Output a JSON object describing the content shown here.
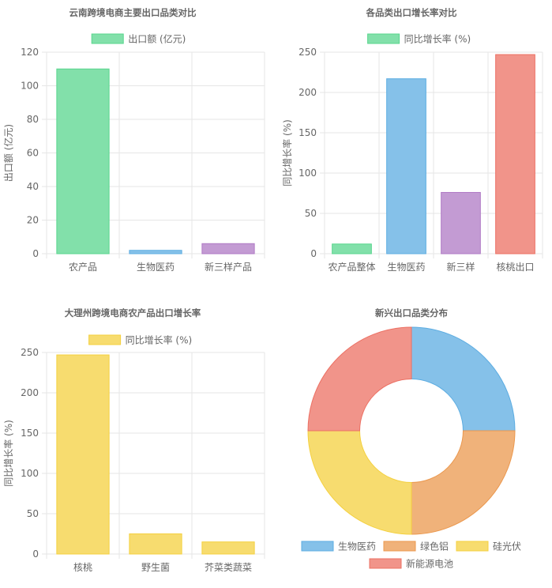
{
  "chart_data": [
    {
      "type": "bar",
      "title": "云南跨境电商主要出口品类对比",
      "legend": [
        {
          "label": "出口额 (亿元)",
          "color": "#82e0aa",
          "border": "#58d68d"
        }
      ],
      "legend_position": "top",
      "categories": [
        "农产品",
        "生物医药",
        "新三样产品"
      ],
      "series": [
        {
          "name": "出口额 (亿元)",
          "values": [
            110,
            2,
            6
          ]
        }
      ],
      "colors": [
        "#82e0aa",
        "#85c1e9",
        "#c39bd3"
      ],
      "borders": [
        "#58d68d",
        "#5dade2",
        "#af7ac5"
      ],
      "ylabel": "出口额 (亿元)",
      "ylim": [
        0,
        120
      ],
      "yticks": [
        0,
        20,
        40,
        60,
        80,
        100,
        120
      ],
      "grid": true
    },
    {
      "type": "bar",
      "title": "各品类出口增长率对比",
      "legend": [
        {
          "label": "同比增长率 (%)",
          "color": "#82e0aa",
          "border": "#58d68d"
        }
      ],
      "legend_position": "top",
      "categories": [
        "农产品整体",
        "生物医药",
        "新三样",
        "核桃出口"
      ],
      "series": [
        {
          "name": "同比增长率 (%)",
          "values": [
            12,
            217,
            76,
            247
          ]
        }
      ],
      "colors": [
        "#82e0aa",
        "#85c1e9",
        "#c39bd3",
        "#f1948a"
      ],
      "borders": [
        "#58d68d",
        "#5dade2",
        "#af7ac5",
        "#ec7063"
      ],
      "ylabel": "同比增长率 (%)",
      "ylim": [
        0,
        250
      ],
      "yticks": [
        0,
        50,
        100,
        150,
        200,
        250
      ],
      "grid": true
    },
    {
      "type": "bar",
      "title": "大理州跨境电商农产品出口增长率",
      "legend": [
        {
          "label": "同比增长率 (%)",
          "color": "#f7dc6f",
          "border": "#f4d03f"
        }
      ],
      "legend_position": "top",
      "categories": [
        "核桃",
        "野生菌",
        "芥菜类蔬菜"
      ],
      "series": [
        {
          "name": "同比增长率 (%)",
          "values": [
            247,
            25,
            15
          ]
        }
      ],
      "colors": [
        "#f7dc6f",
        "#f7dc6f",
        "#f7dc6f"
      ],
      "borders": [
        "#f4d03f",
        "#f4d03f",
        "#f4d03f"
      ],
      "ylabel": "同比增长率 (%)",
      "ylim": [
        0,
        250
      ],
      "yticks": [
        0,
        50,
        100,
        150,
        200,
        250
      ],
      "grid": true
    },
    {
      "type": "pie",
      "title": "新兴出口品类分布",
      "labels": [
        "生物医药",
        "绿色铝",
        "硅光伏",
        "新能源电池"
      ],
      "values": [
        25,
        25,
        25,
        25
      ],
      "colors": [
        "#85c1e9",
        "#f0b27a",
        "#f7dc6f",
        "#f1948a"
      ],
      "borders": [
        "#5dade2",
        "#eb984e",
        "#f4d03f",
        "#ec7063"
      ],
      "legend_position": "bottom",
      "cutout": 0.5
    }
  ]
}
